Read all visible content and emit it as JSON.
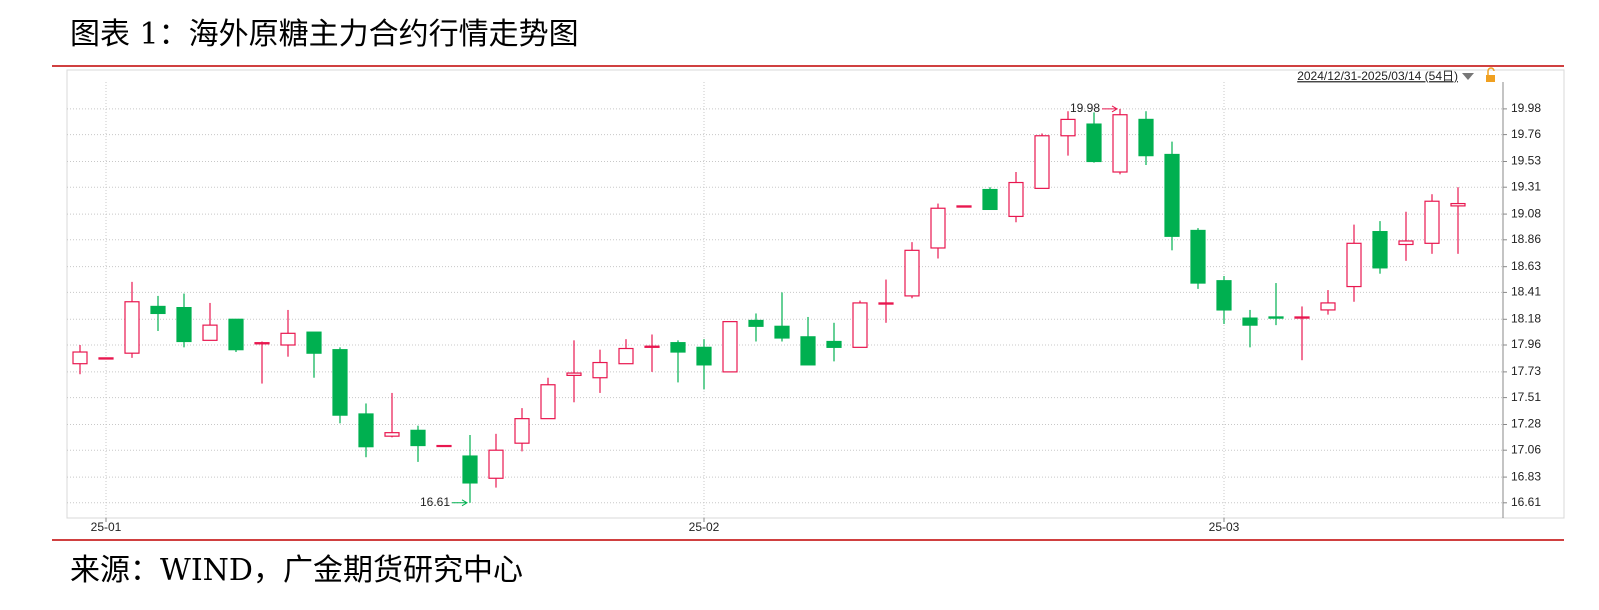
{
  "title": "图表 1：海外原糖主力合约行情走势图",
  "source": "来源：WIND，广金期货研究中心",
  "chart_data": {
    "type": "candlestick",
    "range_label": "2024/12/31-2025/03/14 (54日)",
    "categories": [
      null,
      "25-01",
      null,
      null,
      null,
      null,
      null,
      null,
      null,
      null,
      null,
      null,
      null,
      null,
      null,
      null,
      null,
      null,
      null,
      null,
      null,
      null,
      null,
      null,
      "25-02",
      null,
      null,
      null,
      null,
      null,
      null,
      null,
      null,
      null,
      null,
      null,
      null,
      null,
      null,
      null,
      null,
      null,
      null,
      null,
      "25-03",
      null,
      null,
      null,
      null,
      null,
      null,
      null,
      null,
      null
    ],
    "open": [
      17.8,
      17.84,
      17.89,
      18.29,
      18.28,
      18.0,
      18.18,
      17.97,
      17.96,
      18.07,
      17.92,
      17.37,
      17.18,
      17.23,
      17.1,
      17.01,
      16.82,
      17.12,
      17.33,
      17.7,
      17.68,
      17.8,
      17.94,
      17.98,
      17.94,
      17.73,
      18.17,
      18.12,
      18.03,
      17.99,
      17.94,
      18.31,
      18.38,
      18.79,
      19.14,
      19.29,
      19.06,
      19.3,
      19.75,
      19.85,
      19.44,
      19.89,
      19.59,
      18.94,
      18.51,
      18.19,
      18.2,
      18.19,
      18.26,
      18.46,
      18.93,
      18.82,
      18.83,
      19.15
    ],
    "high": [
      17.96,
      17.85,
      18.5,
      18.38,
      18.4,
      18.32,
      18.18,
      17.99,
      18.26,
      18.07,
      17.94,
      17.46,
      17.55,
      17.27,
      17.1,
      17.19,
      17.2,
      17.42,
      17.68,
      18.0,
      17.92,
      18.01,
      18.05,
      18.0,
      18.01,
      18.16,
      18.23,
      18.41,
      18.2,
      18.15,
      18.34,
      18.52,
      18.84,
      19.17,
      19.15,
      19.31,
      19.44,
      19.77,
      19.96,
      19.95,
      19.98,
      19.96,
      19.7,
      18.96,
      18.55,
      18.26,
      18.49,
      18.29,
      18.43,
      18.99,
      19.02,
      19.1,
      19.25,
      19.31
    ],
    "low": [
      17.71,
      17.84,
      17.85,
      18.08,
      17.94,
      18.0,
      17.9,
      17.63,
      17.86,
      17.68,
      17.29,
      17.0,
      17.17,
      16.96,
      17.1,
      16.61,
      16.74,
      17.05,
      17.33,
      17.47,
      17.55,
      17.8,
      17.73,
      17.64,
      17.58,
      17.73,
      17.99,
      17.99,
      17.79,
      17.82,
      17.94,
      18.15,
      18.36,
      18.7,
      19.14,
      19.12,
      19.01,
      19.3,
      19.58,
      19.52,
      19.42,
      19.5,
      18.77,
      18.44,
      18.14,
      17.94,
      18.13,
      17.83,
      18.22,
      18.33,
      18.57,
      18.68,
      18.74,
      18.74
    ],
    "close": [
      17.9,
      17.85,
      18.33,
      18.23,
      17.99,
      18.13,
      17.92,
      17.98,
      18.06,
      17.89,
      17.36,
      17.09,
      17.21,
      17.1,
      17.1,
      16.78,
      17.06,
      17.33,
      17.62,
      17.72,
      17.81,
      17.93,
      17.95,
      17.9,
      17.79,
      18.16,
      18.12,
      18.02,
      17.79,
      17.94,
      18.32,
      18.32,
      18.77,
      19.13,
      19.15,
      19.12,
      19.35,
      19.75,
      19.89,
      19.53,
      19.93,
      19.58,
      18.89,
      18.49,
      18.26,
      18.13,
      18.19,
      18.2,
      18.32,
      18.83,
      18.62,
      18.85,
      19.19,
      19.17
    ],
    "up_color": "#e8174f",
    "down_color": "#00b050",
    "high_annotation": 19.98,
    "low_annotation": 16.61,
    "ylim": [
      16.48,
      20.21
    ],
    "yticks": [
      16.61,
      16.83,
      17.06,
      17.28,
      17.51,
      17.73,
      17.96,
      18.18,
      18.41,
      18.63,
      18.86,
      19.08,
      19.31,
      19.53,
      19.76,
      19.98
    ],
    "grid": true
  }
}
